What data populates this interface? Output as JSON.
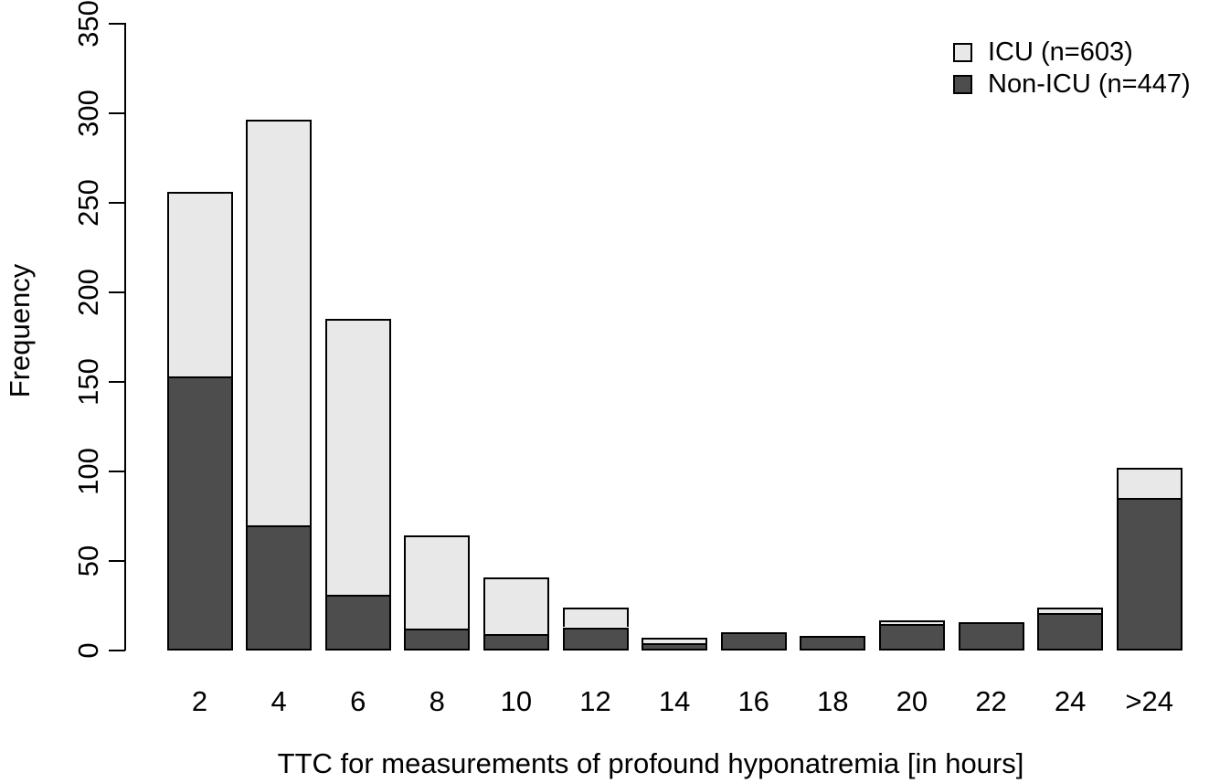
{
  "chart_data": {
    "type": "bar",
    "stacked": true,
    "title": "",
    "xlabel": "TTC for measurements of profound hyponatremia [in hours]",
    "ylabel": "Frequency",
    "categories": [
      "2",
      "4",
      "6",
      "8",
      "10",
      "12",
      "14",
      "16",
      "18",
      "20",
      "22",
      "24",
      ">24"
    ],
    "series": [
      {
        "name": "ICU (n=603)",
        "color": "#e8e8e8",
        "stack_position": "top",
        "values": [
          103,
          226,
          154,
          52,
          32,
          11,
          3,
          0,
          0,
          2,
          0,
          3,
          17
        ]
      },
      {
        "name": "Non-ICU (n=447)",
        "color": "#4d4d4d",
        "stack_position": "bottom",
        "values": [
          153,
          70,
          31,
          12,
          9,
          13,
          4,
          10,
          8,
          15,
          16,
          21,
          85
        ]
      }
    ],
    "stack_totals": [
      256,
      296,
      185,
      64,
      41,
      24,
      7,
      10,
      8,
      17,
      16,
      24,
      102
    ],
    "ylim": [
      0,
      350
    ],
    "y_ticks": [
      0,
      50,
      100,
      150,
      200,
      250,
      300,
      350
    ],
    "grid": false,
    "legend_position": "top-right",
    "bar_border_color": "#000000",
    "background_color": "#ffffff",
    "text_color": "#000000"
  }
}
